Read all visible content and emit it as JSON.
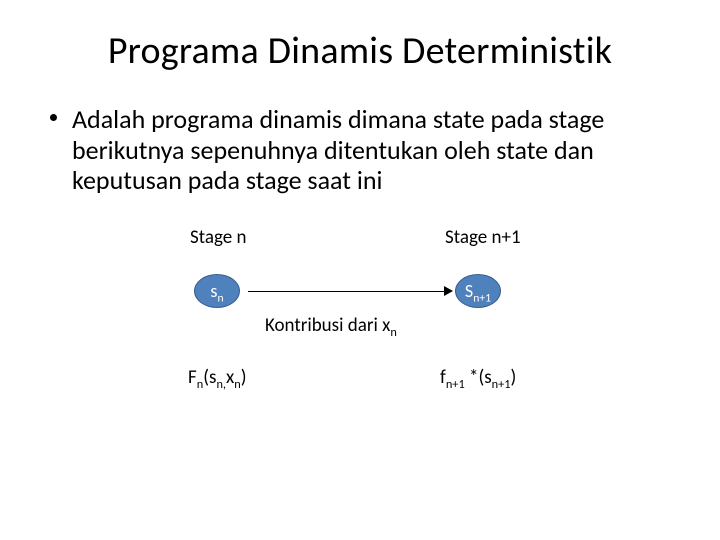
{
  "title": "Programa Dinamis Deterministik",
  "body_text": "Adalah programa dinamis dimana state pada stage berikutnya sepenuhnya ditentukan oleh state dan keputusan pada stage saat ini",
  "diagram": {
    "stage_n_label": "Stage n",
    "stage_n1_label": "Stage n+1",
    "node_left_main": "s",
    "node_left_sub": "n",
    "node_right_main": "S",
    "node_right_sub": "n+1",
    "contribution_prefix": "Kontribusi dari x",
    "contribution_sub": "n",
    "fn_left_a": "F",
    "fn_left_a_sub": "n",
    "fn_left_b": "(s",
    "fn_left_b_sub": "n,",
    "fn_left_c": "x",
    "fn_left_c_sub": "n",
    "fn_left_d": ")",
    "fn_right_a": "f",
    "fn_right_a_sub": "n+1",
    "fn_right_b": " *(s",
    "fn_right_b_sub": "n+1",
    "fn_right_c": ")",
    "node_fill": "#4f81bd",
    "node_border": "#385d8a",
    "node_text": "#ffffff"
  }
}
